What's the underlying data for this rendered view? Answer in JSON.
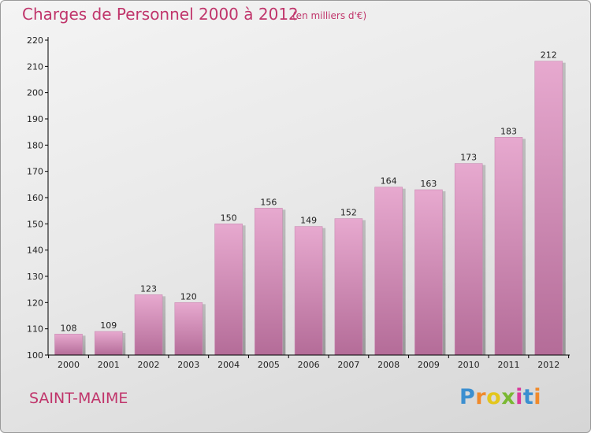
{
  "header": {
    "title": "Charges de Personnel 2000 à 2012",
    "subtitle": "(en milliers d'€)"
  },
  "commune": "SAINT-MAIME",
  "logo": {
    "text": "Proxiti",
    "letters": [
      "P",
      "r",
      "o",
      "x",
      "i",
      "t",
      "i"
    ]
  },
  "colors": {
    "title": "#c0356b",
    "bar_top": "#e7a9cf",
    "bar_bottom": "#b46c98",
    "axis": "#000000"
  },
  "chart_data": {
    "type": "bar",
    "categories": [
      "2000",
      "2001",
      "2002",
      "2003",
      "2004",
      "2005",
      "2006",
      "2007",
      "2008",
      "2009",
      "2010",
      "2011",
      "2012"
    ],
    "values": [
      108,
      109,
      123,
      120,
      150,
      156,
      149,
      152,
      164,
      163,
      173,
      183,
      212
    ],
    "ylim": [
      100,
      220
    ],
    "yticks": [
      100,
      110,
      120,
      130,
      140,
      150,
      160,
      170,
      180,
      190,
      200,
      210,
      220
    ],
    "title": "Charges de Personnel 2000 à 2012",
    "subtitle": "(en milliers d'€)",
    "data_labels": true,
    "grid": false
  }
}
